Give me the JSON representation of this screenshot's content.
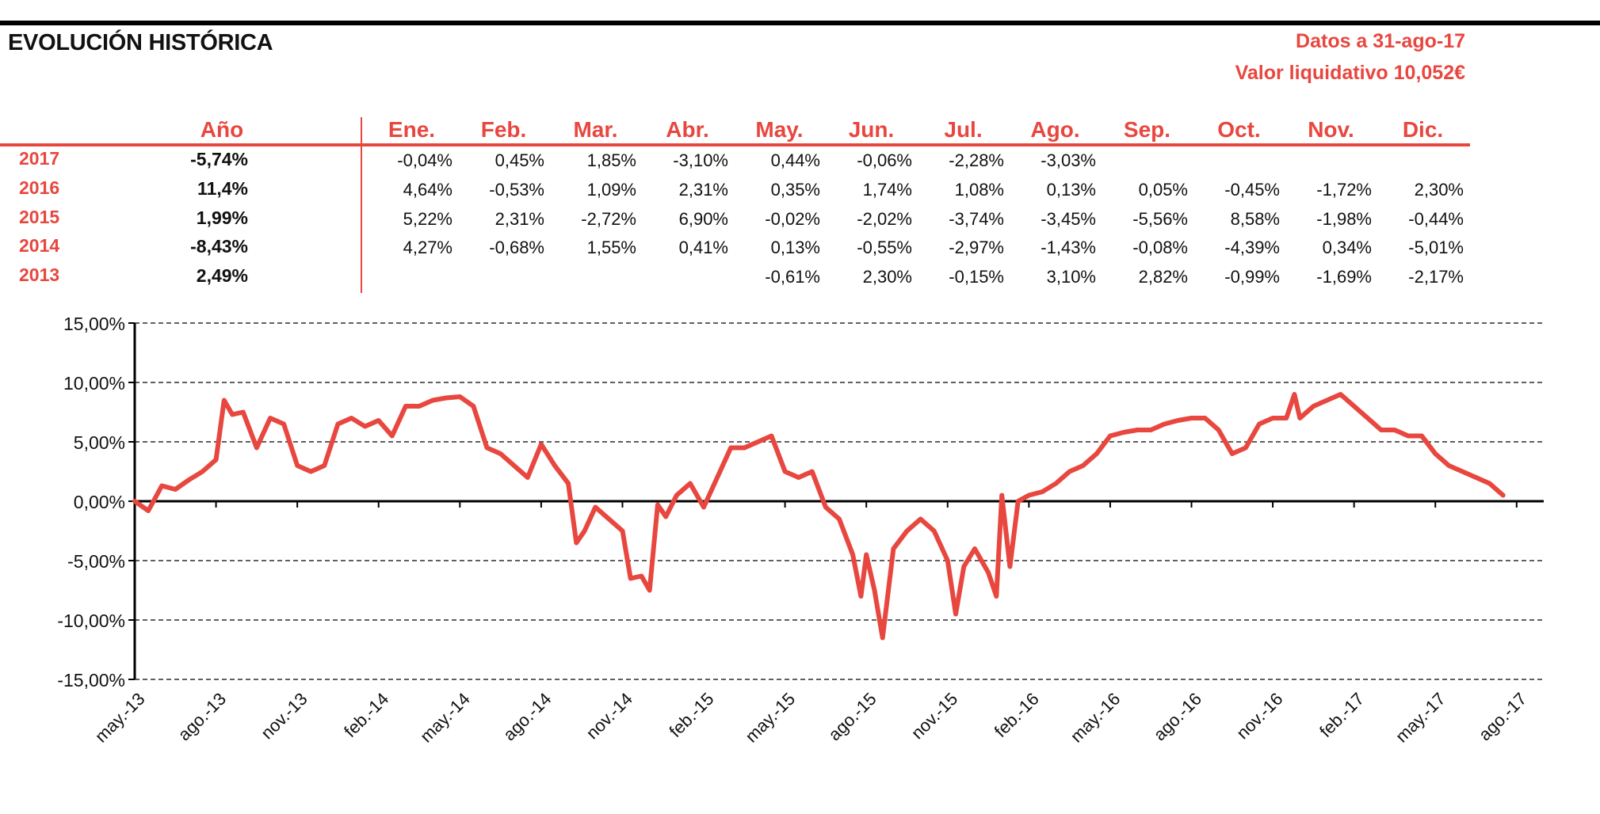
{
  "header": {
    "title": "EVOLUCIÓN HISTÓRICA",
    "date_text": "Datos a 31-ago-17",
    "nav_text": "Valor liquidativo 10,052€"
  },
  "table": {
    "year_header": "Año",
    "months": [
      "Ene.",
      "Feb.",
      "Mar.",
      "Abr.",
      "May.",
      "Jun.",
      "Jul.",
      "Ago.",
      "Sep.",
      "Oct.",
      "Nov.",
      "Dic."
    ],
    "rows": [
      {
        "year": "2017",
        "total": "-5,74%",
        "values": [
          "-0,04%",
          "0,45%",
          "1,85%",
          "-3,10%",
          "0,44%",
          "-0,06%",
          "-2,28%",
          "-3,03%",
          "",
          "",
          "",
          ""
        ]
      },
      {
        "year": "2016",
        "total": "11,4%",
        "values": [
          "4,64%",
          "-0,53%",
          "1,09%",
          "2,31%",
          "0,35%",
          "1,74%",
          "1,08%",
          "0,13%",
          "0,05%",
          "-0,45%",
          "-1,72%",
          "2,30%"
        ]
      },
      {
        "year": "2015",
        "total": "1,99%",
        "values": [
          "5,22%",
          "2,31%",
          "-2,72%",
          "6,90%",
          "-0,02%",
          "-2,02%",
          "-3,74%",
          "-3,45%",
          "-5,56%",
          "8,58%",
          "-1,98%",
          "-0,44%"
        ]
      },
      {
        "year": "2014",
        "total": "-8,43%",
        "values": [
          "4,27%",
          "-0,68%",
          "1,55%",
          "0,41%",
          "0,13%",
          "-0,55%",
          "-2,97%",
          "-1,43%",
          "-0,08%",
          "-4,39%",
          "0,34%",
          "-5,01%"
        ]
      },
      {
        "year": "2013",
        "total": "2,49%",
        "values": [
          "",
          "",
          "",
          "",
          "-0,61%",
          "2,30%",
          "-0,15%",
          "3,10%",
          "2,82%",
          "-0,99%",
          "-1,69%",
          "-2,17%"
        ]
      }
    ]
  },
  "chart_data": {
    "type": "line",
    "title": "",
    "xlabel": "",
    "ylabel": "",
    "ylim": [
      -15,
      15
    ],
    "yticks": [
      15,
      10,
      5,
      0,
      -5,
      -10,
      -15
    ],
    "ytick_labels": [
      "15,00%",
      "10,00%",
      "5,00%",
      "0,00%",
      "-5,00%",
      "-10,00%",
      "-15,00%"
    ],
    "xlim": [
      0,
      52
    ],
    "xticks": [
      0,
      3,
      6,
      9,
      12,
      15,
      18,
      21,
      24,
      27,
      30,
      33,
      36,
      39,
      42,
      45,
      48,
      51
    ],
    "xtick_labels": [
      "may.-13",
      "ago.-13",
      "nov.-13",
      "feb.-14",
      "may.-14",
      "ago.-14",
      "nov.-14",
      "feb.-15",
      "may.-15",
      "ago.-15",
      "nov.-15",
      "feb.-16",
      "may.-16",
      "ago.-16",
      "nov.-16",
      "feb.-17",
      "may.-17",
      "ago.-17"
    ],
    "grid": "horizontal dashed",
    "line_color": "#e8473f",
    "series": [
      {
        "points": [
          [
            0,
            0.0
          ],
          [
            0.5,
            -0.8
          ],
          [
            1.0,
            1.3
          ],
          [
            1.5,
            1.0
          ],
          [
            2.0,
            1.8
          ],
          [
            2.5,
            2.5
          ],
          [
            3.0,
            3.5
          ],
          [
            3.3,
            8.5
          ],
          [
            3.6,
            7.3
          ],
          [
            4.0,
            7.5
          ],
          [
            4.5,
            4.5
          ],
          [
            5.0,
            7.0
          ],
          [
            5.5,
            6.5
          ],
          [
            6.0,
            3.0
          ],
          [
            6.5,
            2.5
          ],
          [
            7.0,
            3.0
          ],
          [
            7.5,
            6.5
          ],
          [
            8.0,
            7.0
          ],
          [
            8.5,
            6.3
          ],
          [
            9.0,
            6.8
          ],
          [
            9.5,
            5.5
          ],
          [
            10.0,
            8.0
          ],
          [
            10.5,
            8.0
          ],
          [
            11.0,
            8.5
          ],
          [
            11.5,
            8.7
          ],
          [
            12.0,
            8.8
          ],
          [
            12.5,
            8.0
          ],
          [
            13.0,
            4.5
          ],
          [
            13.5,
            4.0
          ],
          [
            14.0,
            3.0
          ],
          [
            14.5,
            2.0
          ],
          [
            15.0,
            4.8
          ],
          [
            15.5,
            3.0
          ],
          [
            16.0,
            1.5
          ],
          [
            16.3,
            -3.5
          ],
          [
            16.6,
            -2.5
          ],
          [
            17.0,
            -0.5
          ],
          [
            17.5,
            -1.5
          ],
          [
            18.0,
            -2.5
          ],
          [
            18.3,
            -6.5
          ],
          [
            18.7,
            -6.3
          ],
          [
            19.0,
            -7.5
          ],
          [
            19.3,
            -0.3
          ],
          [
            19.6,
            -1.3
          ],
          [
            20.0,
            0.5
          ],
          [
            20.5,
            1.5
          ],
          [
            21.0,
            -0.5
          ],
          [
            21.5,
            2.0
          ],
          [
            22.0,
            4.5
          ],
          [
            22.5,
            4.5
          ],
          [
            23.0,
            5.0
          ],
          [
            23.5,
            5.5
          ],
          [
            24.0,
            2.5
          ],
          [
            24.5,
            2.0
          ],
          [
            25.0,
            2.5
          ],
          [
            25.5,
            -0.5
          ],
          [
            26.0,
            -1.5
          ],
          [
            26.5,
            -4.5
          ],
          [
            26.8,
            -8.0
          ],
          [
            27.0,
            -4.5
          ],
          [
            27.3,
            -7.5
          ],
          [
            27.6,
            -11.5
          ],
          [
            28.0,
            -4.0
          ],
          [
            28.5,
            -2.5
          ],
          [
            29.0,
            -1.5
          ],
          [
            29.5,
            -2.5
          ],
          [
            30.0,
            -5.0
          ],
          [
            30.3,
            -9.5
          ],
          [
            30.6,
            -5.5
          ],
          [
            31.0,
            -4.0
          ],
          [
            31.5,
            -6.0
          ],
          [
            31.8,
            -8.0
          ],
          [
            32.0,
            0.5
          ],
          [
            32.3,
            -5.5
          ],
          [
            32.6,
            0.0
          ],
          [
            33.0,
            0.5
          ],
          [
            33.5,
            0.8
          ],
          [
            34.0,
            1.5
          ],
          [
            34.5,
            2.5
          ],
          [
            35.0,
            3.0
          ],
          [
            35.5,
            4.0
          ],
          [
            36.0,
            5.5
          ],
          [
            36.5,
            5.8
          ],
          [
            37.0,
            6.0
          ],
          [
            37.5,
            6.0
          ],
          [
            38.0,
            6.5
          ],
          [
            38.5,
            6.8
          ],
          [
            39.0,
            7.0
          ],
          [
            39.5,
            7.0
          ],
          [
            40.0,
            6.0
          ],
          [
            40.5,
            4.0
          ],
          [
            41.0,
            4.5
          ],
          [
            41.5,
            6.5
          ],
          [
            42.0,
            7.0
          ],
          [
            42.5,
            7.0
          ],
          [
            42.8,
            9.0
          ],
          [
            43.0,
            7.0
          ],
          [
            43.5,
            8.0
          ],
          [
            44.0,
            8.5
          ],
          [
            44.5,
            9.0
          ],
          [
            45.0,
            8.0
          ],
          [
            45.5,
            7.0
          ],
          [
            46.0,
            6.0
          ],
          [
            46.5,
            6.0
          ],
          [
            47.0,
            5.5
          ],
          [
            47.5,
            5.5
          ],
          [
            48.0,
            4.0
          ],
          [
            48.5,
            3.0
          ],
          [
            49.0,
            2.5
          ],
          [
            49.5,
            2.0
          ],
          [
            50.0,
            1.5
          ],
          [
            50.5,
            0.5
          ]
        ]
      }
    ]
  }
}
